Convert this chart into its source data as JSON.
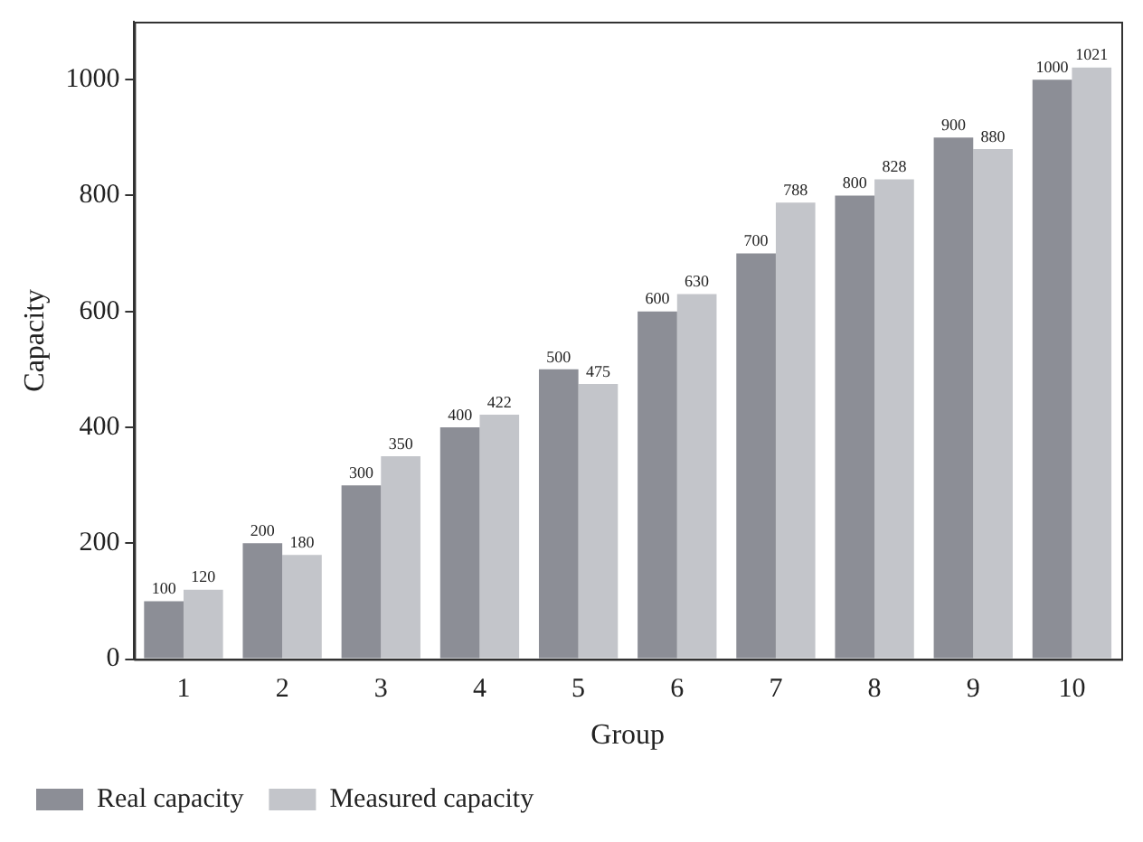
{
  "chart_data": {
    "type": "bar",
    "xlabel": "Group",
    "ylabel": "Capacity",
    "categories": [
      "1",
      "2",
      "3",
      "4",
      "5",
      "6",
      "7",
      "8",
      "9",
      "10"
    ],
    "series": [
      {
        "name": "Real capacity",
        "color": "#8c8e96",
        "values": [
          100,
          200,
          300,
          400,
          500,
          600,
          700,
          800,
          900,
          1000
        ]
      },
      {
        "name": "Measured capacity",
        "color": "#c3c5ca",
        "values": [
          120,
          180,
          350,
          422,
          475,
          630,
          788,
          828,
          880,
          1021
        ]
      }
    ],
    "ylim": [
      0,
      1100
    ],
    "yticks": [
      0,
      200,
      400,
      600,
      800,
      1000
    ],
    "grid": false,
    "legend": "bottom left",
    "data_labels": true
  }
}
